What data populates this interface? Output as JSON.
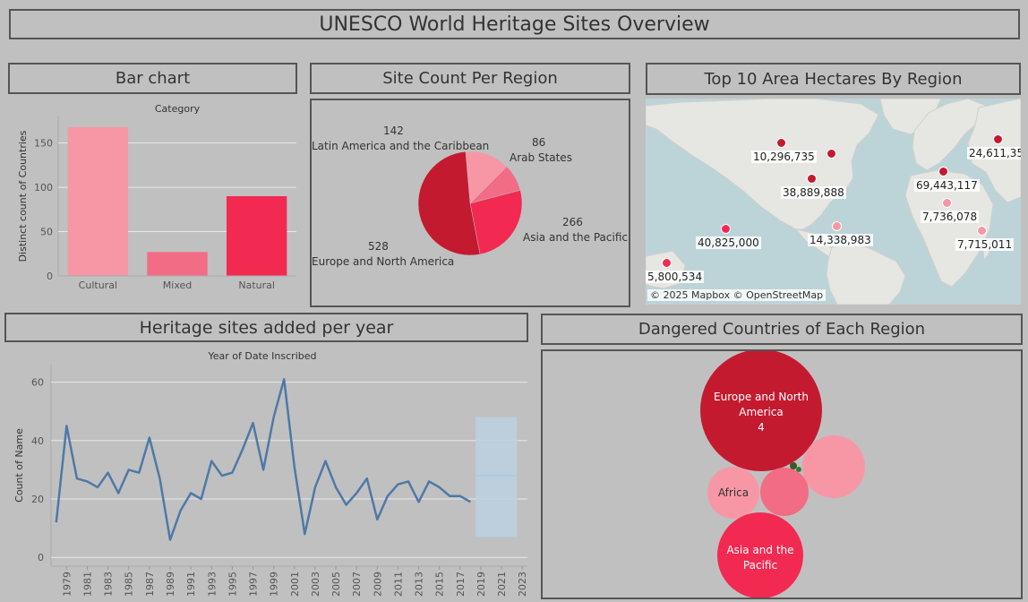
{
  "dashboard": {
    "title": "UNESCO World Heritage Sites Overview"
  },
  "colors": {
    "pink_light": "#f797a6",
    "pink_mid": "#f26c85",
    "red_bright": "#f22a52",
    "red_dark": "#c41a30",
    "line_blue": "#4e79a7",
    "forecast_band": "#bcd0e0",
    "forecast_line": "#a9cbe6",
    "map_water": "#bcd4d8",
    "map_land": "#e6e6e3"
  },
  "bar_panel": {
    "header": "Bar chart",
    "chart_data": {
      "type": "bar",
      "title": "Category",
      "ylabel": "Distinct count of Countries",
      "categories": [
        "Cultural",
        "Mixed",
        "Natural"
      ],
      "values": [
        168,
        27,
        90
      ],
      "ylim": [
        0,
        180
      ],
      "yticks": [
        0,
        50,
        100,
        150
      ],
      "colors": [
        "#f797a6",
        "#f26c85",
        "#f22a52"
      ],
      "grid": true
    }
  },
  "pie_panel": {
    "header": "Site Count Per Region",
    "chart_data": {
      "type": "pie",
      "slices": [
        {
          "name": "Latin America and the Caribbean",
          "value": 142,
          "color": "#f797a6"
        },
        {
          "name": "Arab States",
          "value": 86,
          "color": "#f26c85"
        },
        {
          "name": "Asia and the Pacific",
          "value": 266,
          "color": "#f22a52"
        },
        {
          "name": "Europe and North America",
          "value": 528,
          "color": "#c41a30"
        }
      ]
    },
    "labels": [
      {
        "value": "142",
        "name": "Latin America and the Caribbean"
      },
      {
        "value": "86",
        "name": "Arab States"
      },
      {
        "value": "266",
        "name": "Asia and the Pacific"
      },
      {
        "value": "528",
        "name": "Europe and North America"
      }
    ]
  },
  "map_panel": {
    "header": "Top 10 Area Hectares By Region",
    "attribution": "© 2025 Mapbox © OpenStreetMap",
    "points": [
      {
        "label": "10,296,735",
        "color": "#c41a30"
      },
      {
        "label": "38,889,888",
        "color": "#c41a30"
      },
      {
        "label": "24,611,35",
        "color": "#c41a30"
      },
      {
        "label": "69,443,117",
        "color": "#c41a30"
      },
      {
        "label": "7,736,078",
        "color": "#f797a6"
      },
      {
        "label": "7,715,011",
        "color": "#f797a6"
      },
      {
        "label": "40,825,000",
        "color": "#f22a52"
      },
      {
        "label": "14,338,983",
        "color": "#f797a6"
      },
      {
        "label": "5,800,534",
        "color": "#f22a52"
      }
    ]
  },
  "line_panel": {
    "header": "Heritage sites added per year",
    "chart_data": {
      "type": "line",
      "title": "Year of Date Inscribed",
      "ylabel": "Count of Name",
      "x": [
        1978,
        1979,
        1980,
        1981,
        1982,
        1983,
        1984,
        1985,
        1986,
        1987,
        1988,
        1989,
        1990,
        1991,
        1992,
        1993,
        1994,
        1995,
        1996,
        1997,
        1998,
        1999,
        2000,
        2001,
        2002,
        2003,
        2004,
        2005,
        2006,
        2007,
        2008,
        2009,
        2010,
        2011,
        2012,
        2013,
        2014,
        2015,
        2016,
        2017,
        2018
      ],
      "values": [
        12,
        45,
        27,
        26,
        24,
        29,
        22,
        30,
        29,
        41,
        27,
        6,
        16,
        22,
        20,
        33,
        28,
        29,
        37,
        46,
        30,
        48,
        61,
        31,
        8,
        24,
        33,
        24,
        18,
        22,
        27,
        13,
        21,
        25,
        26,
        19,
        26,
        24,
        21,
        21,
        19
      ],
      "xlim": [
        1977.5,
        2023.5
      ],
      "ylim": [
        -3,
        66
      ],
      "yticks": [
        0,
        20,
        40,
        60
      ],
      "xticks": [
        1979,
        1981,
        1983,
        1985,
        1987,
        1989,
        1991,
        1993,
        1995,
        1997,
        1999,
        2001,
        2003,
        2005,
        2007,
        2009,
        2011,
        2013,
        2015,
        2017,
        2019,
        2021,
        2023
      ],
      "forecast": {
        "x_start": 2018.5,
        "x_end": 2022.5,
        "y_low": 7,
        "y_high": 48,
        "estimate": 28
      },
      "grid": true
    }
  },
  "bubble_panel": {
    "header": "Dangered Countries of Each Region",
    "chart_data": {
      "type": "bubble",
      "bubbles": [
        {
          "region": "Europe and North America",
          "label_line1": "Europe and North",
          "label_line2": "America",
          "value": "4",
          "color": "#c41a30"
        },
        {
          "region": "Asia and the Pacific",
          "label_line1": "Asia and the",
          "label_line2": "Pacific",
          "value": "",
          "color": "#f22a52"
        },
        {
          "region": "Africa",
          "label_line1": "Africa",
          "label_line2": "",
          "value": "",
          "color": "#f797a6"
        },
        {
          "region": "",
          "label_line1": "",
          "label_line2": "",
          "value": "",
          "color": "#f26c85"
        },
        {
          "region": "",
          "label_line1": "",
          "label_line2": "",
          "value": "",
          "color": "#f797a6"
        }
      ]
    }
  }
}
